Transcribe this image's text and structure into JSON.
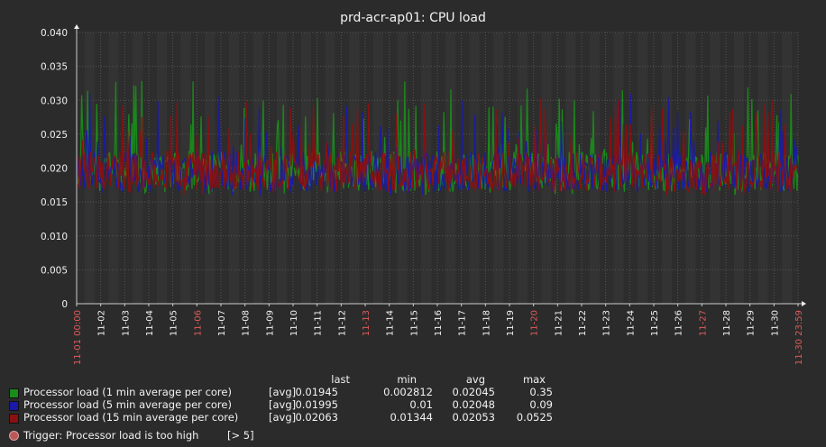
{
  "chart_data": {
    "type": "line",
    "title": "prd-acr-ap01: CPU load",
    "ylim": [
      0,
      0.04
    ],
    "yticks": [
      "0",
      "0.005",
      "0.010",
      "0.015",
      "0.020",
      "0.025",
      "0.030",
      "0.035",
      "0.040"
    ],
    "xticks": [
      {
        "label": "11-01 00:00",
        "highlight": true
      },
      {
        "label": "11-02",
        "highlight": false
      },
      {
        "label": "11-03",
        "highlight": false
      },
      {
        "label": "11-04",
        "highlight": false
      },
      {
        "label": "11-05",
        "highlight": false
      },
      {
        "label": "11-06",
        "highlight": true
      },
      {
        "label": "11-07",
        "highlight": false
      },
      {
        "label": "11-08",
        "highlight": false
      },
      {
        "label": "11-09",
        "highlight": false
      },
      {
        "label": "11-10",
        "highlight": false
      },
      {
        "label": "11-11",
        "highlight": false
      },
      {
        "label": "11-12",
        "highlight": false
      },
      {
        "label": "11-13",
        "highlight": true
      },
      {
        "label": "11-14",
        "highlight": false
      },
      {
        "label": "11-15",
        "highlight": false
      },
      {
        "label": "11-16",
        "highlight": false
      },
      {
        "label": "11-17",
        "highlight": false
      },
      {
        "label": "11-18",
        "highlight": false
      },
      {
        "label": "11-19",
        "highlight": false
      },
      {
        "label": "11-20",
        "highlight": true
      },
      {
        "label": "11-21",
        "highlight": false
      },
      {
        "label": "11-22",
        "highlight": false
      },
      {
        "label": "11-23",
        "highlight": false
      },
      {
        "label": "11-24",
        "highlight": false
      },
      {
        "label": "11-25",
        "highlight": false
      },
      {
        "label": "11-26",
        "highlight": false
      },
      {
        "label": "11-27",
        "highlight": true
      },
      {
        "label": "11-28",
        "highlight": false
      },
      {
        "label": "11-29",
        "highlight": false
      },
      {
        "label": "11-30",
        "highlight": false
      },
      {
        "label": "11-30 23:59",
        "highlight": true
      }
    ],
    "series": [
      {
        "name": "Processor load (1 min average per core)",
        "color": "#1a8c1a",
        "func": "[avg]",
        "last": "0.01945",
        "min": "0.002812",
        "avg": "0.02045",
        "max": "0.35",
        "typical_range": [
          0.016,
          0.0335
        ]
      },
      {
        "name": "Processor load (5 min average per core)",
        "color": "#1a1aa6",
        "func": "[avg]",
        "last": "0.01995",
        "min": "0.01",
        "avg": "0.02048",
        "max": "0.09",
        "typical_range": [
          0.016,
          0.0315
        ]
      },
      {
        "name": "Processor load (15 min average per core)",
        "color": "#8c1010",
        "func": "[avg]",
        "last": "0.02063",
        "min": "0.01344",
        "avg": "0.02053",
        "max": "0.0525",
        "typical_range": [
          0.016,
          0.0305
        ]
      }
    ],
    "grid": true
  },
  "legend": {
    "columns": {
      "last": "last",
      "min": "min",
      "avg": "avg",
      "max": "max"
    }
  },
  "trigger": {
    "label": "Trigger: Processor load is too high",
    "value": "[> 5]",
    "color": "#b85959"
  }
}
